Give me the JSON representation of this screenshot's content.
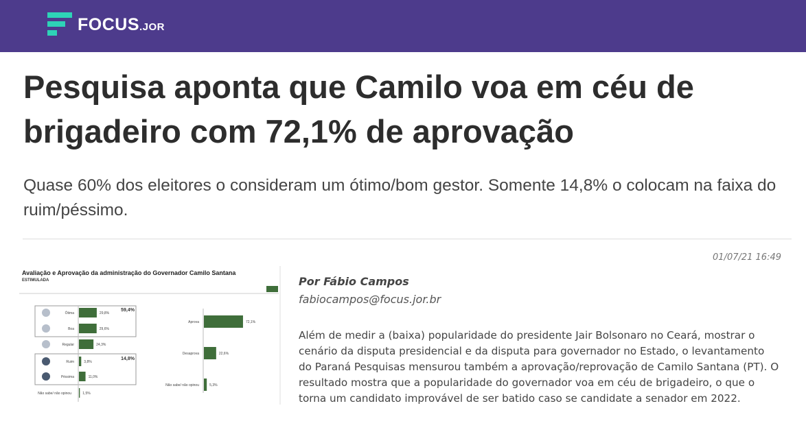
{
  "header": {
    "logo_main": "FOCUS",
    "logo_suffix": ".JOR",
    "brand_color": "#4d3b8c",
    "accent_color": "#2ed3b7"
  },
  "article": {
    "title": "Pesquisa aponta que Camilo voa em céu de brigadeiro com 72,1% de aprovação",
    "subtitle": "Quase 60% dos eleitores o consideram um ótimo/bom gestor. Somente 14,8% o colocam na faixa do ruim/péssimo.",
    "date": "01/07/21 16:49",
    "author": "Por Fábio Campos",
    "email": "fabiocampos@focus.jor.br",
    "body": "Além de medir a (baixa) popularidade do presidente Jair Bolsonaro no Ceará, mostrar o cenário da disputa presidencial e da disputa para governador no Estado, o levantamento do Paraná Pesquisas mensurou também a aprovação/reprovação de Camilo Santana (PT). O resultado mostra que a popularidade do governador voa em céu de brigadeiro, o que o torna um candidato improvável de ser batido caso se candidate a senador em 2022."
  },
  "chart_data": [
    {
      "type": "bar",
      "title": "Avaliação e Aprovação da administração do Governador Camilo Santana",
      "subtitle": "ESTIMULADA",
      "categories": [
        "Ótima",
        "Boa",
        "Regular",
        "Ruim",
        "Péssima",
        "Não sabe/ não opinou"
      ],
      "values": [
        29.8,
        29.6,
        24.3,
        3.8,
        11.0,
        1.5
      ],
      "labels": [
        "29,8%",
        "29,6%",
        "24,3%",
        "3,8%",
        "11,0%",
        "1,5%"
      ],
      "group_totals": [
        {
          "label": "59,4%"
        },
        {
          "label": "14,8%"
        }
      ],
      "bar_color": "#3f6e3a"
    },
    {
      "type": "bar",
      "categories": [
        "Aprova",
        "Desaprova",
        "Não sabe/ não opinou"
      ],
      "values": [
        72.1,
        22.6,
        5.3
      ],
      "labels": [
        "72,1%",
        "22,6%",
        "5,3%"
      ],
      "bar_color": "#3f6e3a"
    }
  ]
}
